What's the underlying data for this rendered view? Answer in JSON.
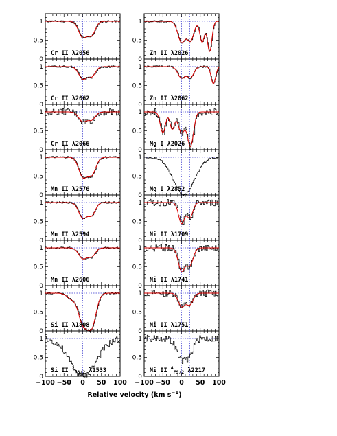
{
  "figure": {
    "xlabel_text": "Relative velocity (km s",
    "xlabel_exp": "−1",
    "xlabel_close": ")"
  },
  "colors": {
    "data": "#000000",
    "model": "#dd0000",
    "marker": "#3333cc",
    "unity": "#3333cc"
  },
  "chart_data": {
    "type": "line",
    "xlabel": "Relative velocity (km s−1)",
    "xlim": [
      -100,
      100
    ],
    "ylim": [
      0,
      1.2
    ],
    "x_ticks": [
      "−100",
      "−50",
      "0",
      "50",
      "100"
    ],
    "y_ticks": [
      "0",
      "0.5",
      "1"
    ],
    "component_markers_kms": [
      0,
      22
    ],
    "panels": [
      {
        "col": 0,
        "row": 0,
        "ion": "Cr II",
        "wave": "λ2056",
        "has_model": true,
        "profile": [
          {
            "v": 0,
            "depth": 0.42,
            "width": 11
          },
          {
            "v": 24,
            "depth": 0.35,
            "width": 10
          }
        ]
      },
      {
        "col": 0,
        "row": 1,
        "ion": "Cr II",
        "wave": "λ2062",
        "has_model": true,
        "profile": [
          {
            "v": 0,
            "depth": 0.32,
            "width": 11
          },
          {
            "v": 24,
            "depth": 0.25,
            "width": 10
          }
        ]
      },
      {
        "col": 0,
        "row": 2,
        "ion": "Cr II",
        "wave": "λ2066",
        "has_model": true,
        "profile": [
          {
            "v": 0,
            "depth": 0.25,
            "width": 11
          },
          {
            "v": 24,
            "depth": 0.2,
            "width": 10
          }
        ]
      },
      {
        "col": 0,
        "row": 3,
        "ion": "Mn II",
        "wave": "λ2576",
        "has_model": true,
        "profile": [
          {
            "v": 0,
            "depth": 0.5,
            "width": 11
          },
          {
            "v": 24,
            "depth": 0.45,
            "width": 11
          }
        ]
      },
      {
        "col": 0,
        "row": 4,
        "ion": "Mn II",
        "wave": "λ2594",
        "has_model": true,
        "profile": [
          {
            "v": 0,
            "depth": 0.4,
            "width": 11
          },
          {
            "v": 24,
            "depth": 0.32,
            "width": 10
          }
        ]
      },
      {
        "col": 0,
        "row": 5,
        "ion": "Mn II",
        "wave": "λ2606",
        "has_model": true,
        "profile": [
          {
            "v": 0,
            "depth": 0.28,
            "width": 11
          },
          {
            "v": 24,
            "depth": 0.22,
            "width": 10
          }
        ]
      },
      {
        "col": 0,
        "row": 6,
        "ion": "Si II",
        "wave": "λ1808",
        "has_model": true,
        "profile": [
          {
            "v": -30,
            "depth": 0.15,
            "width": 12
          },
          {
            "v": 0,
            "depth": 0.75,
            "width": 12
          },
          {
            "v": 24,
            "depth": 0.85,
            "width": 12
          }
        ]
      },
      {
        "col": 0,
        "row": 7,
        "ion": "Si II",
        "wave": "λ1533",
        "super": "2",
        "sub": "P3/2",
        "has_model": false,
        "profile": [
          {
            "v": 0,
            "depth": 1.0,
            "width": 35
          }
        ]
      },
      {
        "col": 1,
        "row": 0,
        "ion": "Zn II",
        "wave": "λ2026",
        "has_model": true,
        "profile": [
          {
            "v": 0,
            "depth": 0.55,
            "width": 10
          },
          {
            "v": 24,
            "depth": 0.5,
            "width": 9
          },
          {
            "v": 55,
            "depth": 0.55,
            "width": 6
          },
          {
            "v": 75,
            "depth": 0.8,
            "width": 6
          }
        ]
      },
      {
        "col": 1,
        "row": 1,
        "ion": "Zn II",
        "wave": "λ2062",
        "has_model": true,
        "profile": [
          {
            "v": 0,
            "depth": 0.3,
            "width": 10
          },
          {
            "v": 24,
            "depth": 0.28,
            "width": 9
          },
          {
            "v": 85,
            "depth": 0.45,
            "width": 6
          }
        ]
      },
      {
        "col": 1,
        "row": 2,
        "ion": "Mg I",
        "wave": "λ2026",
        "has_model": true,
        "profile": [
          {
            "v": -50,
            "depth": 0.55,
            "width": 7
          },
          {
            "v": -25,
            "depth": 0.45,
            "width": 6
          },
          {
            "v": 0,
            "depth": 0.55,
            "width": 9
          },
          {
            "v": 24,
            "depth": 0.9,
            "width": 8
          }
        ]
      },
      {
        "col": 1,
        "row": 3,
        "ion": "Mg I",
        "wave": "λ2852",
        "has_model": false,
        "profile": [
          {
            "v": 5,
            "depth": 1.0,
            "width": 28
          }
        ]
      },
      {
        "col": 1,
        "row": 4,
        "ion": "Ni II",
        "wave": "λ1709",
        "has_model": true,
        "profile": [
          {
            "v": 0,
            "depth": 0.55,
            "width": 8
          },
          {
            "v": 22,
            "depth": 0.4,
            "width": 8
          }
        ]
      },
      {
        "col": 1,
        "row": 5,
        "ion": "Ni II",
        "wave": "λ1741",
        "has_model": true,
        "profile": [
          {
            "v": 0,
            "depth": 0.6,
            "width": 9
          },
          {
            "v": 22,
            "depth": 0.45,
            "width": 9
          }
        ]
      },
      {
        "col": 1,
        "row": 6,
        "ion": "Ni II",
        "wave": "λ1751",
        "has_model": true,
        "profile": [
          {
            "v": 0,
            "depth": 0.35,
            "width": 9
          },
          {
            "v": 22,
            "depth": 0.3,
            "width": 9
          }
        ]
      },
      {
        "col": 1,
        "row": 7,
        "ion": "Ni II",
        "wave": "λ2217",
        "super": "4",
        "sub": "F9/2",
        "has_model": false,
        "profile": [
          {
            "v": 0,
            "depth": 0.55,
            "width": 14
          },
          {
            "v": 22,
            "depth": 0.3,
            "width": 10
          }
        ]
      }
    ]
  }
}
